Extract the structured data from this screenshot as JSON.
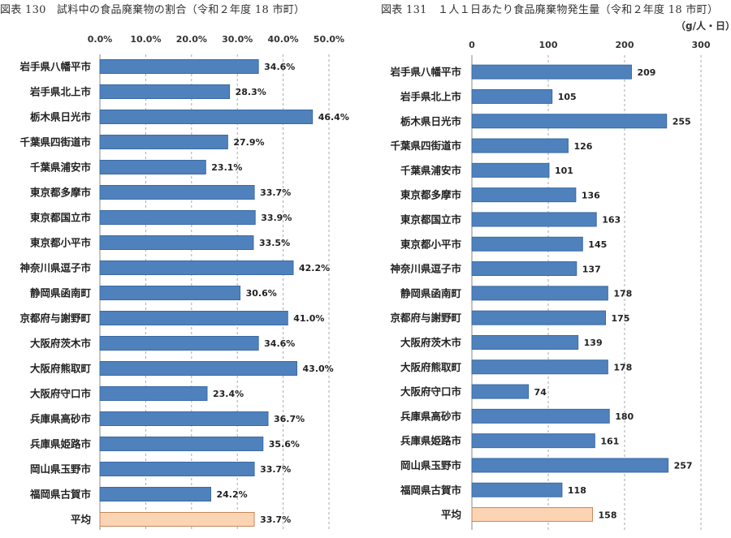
{
  "captions": {
    "left": "図表 130　試料中の食品廃棄物の割合（令和２年度 18 市町）",
    "right": "図表 131　１人１日あたり食品廃棄物発生量（令和２年度 18 市町）",
    "right_unit": "（g/人・日）"
  },
  "colors": {
    "bar": "#4F81BD",
    "bar_edge": "#3a6aa5",
    "avg_bar": "#FBD4B4",
    "avg_edge": "#c8875a",
    "grid": "#aaaaaa"
  },
  "chart_data": [
    {
      "type": "bar",
      "orientation": "horizontal",
      "categories": [
        "岩手県八幡平市",
        "岩手県北上市",
        "栃木県日光市",
        "千葉県四街道市",
        "千葉県浦安市",
        "東京都多摩市",
        "東京都国立市",
        "東京都小平市",
        "神奈川県逗子市",
        "静岡県函南町",
        "京都府与謝野町",
        "大阪府茨木市",
        "大阪府熊取町",
        "大阪府守口市",
        "兵庫県高砂市",
        "兵庫県姫路市",
        "岡山県玉野市",
        "福岡県古賀市",
        "平均"
      ],
      "values": [
        34.6,
        28.3,
        46.4,
        27.9,
        23.1,
        33.7,
        33.9,
        33.5,
        42.2,
        30.6,
        41.0,
        34.6,
        43.0,
        23.4,
        36.7,
        35.6,
        33.7,
        24.2,
        33.7
      ],
      "value_labels": [
        "34.6%",
        "28.3%",
        "46.4%",
        "27.9%",
        "23.1%",
        "33.7%",
        "33.9%",
        "33.5%",
        "42.2%",
        "30.6%",
        "41.0%",
        "34.6%",
        "43.0%",
        "23.4%",
        "36.7%",
        "35.6%",
        "33.7%",
        "24.2%",
        "33.7%"
      ],
      "ticks": [
        0,
        10,
        20,
        30,
        40,
        50
      ],
      "tick_labels": [
        "0.0%",
        "10.0%",
        "20.0%",
        "30.0%",
        "40.0%",
        "50.0%"
      ],
      "xlim": [
        0,
        50
      ],
      "grid": true,
      "highlight_last": true
    },
    {
      "type": "bar",
      "orientation": "horizontal",
      "categories": [
        "岩手県八幡平市",
        "岩手県北上市",
        "栃木県日光市",
        "千葉県四街道市",
        "千葉県浦安市",
        "東京都多摩市",
        "東京都国立市",
        "東京都小平市",
        "神奈川県逗子市",
        "静岡県函南町",
        "京都府与謝野町",
        "大阪府茨木市",
        "大阪府熊取町",
        "大阪府守口市",
        "兵庫県高砂市",
        "兵庫県姫路市",
        "岡山県玉野市",
        "福岡県古賀市",
        "平均"
      ],
      "values": [
        209,
        105,
        255,
        126,
        101,
        136,
        163,
        145,
        137,
        178,
        175,
        139,
        178,
        74,
        180,
        161,
        257,
        118,
        158
      ],
      "value_labels": [
        "209",
        "105",
        "255",
        "126",
        "101",
        "136",
        "163",
        "145",
        "137",
        "178",
        "175",
        "139",
        "178",
        "74",
        "180",
        "161",
        "257",
        "118",
        "158"
      ],
      "ticks": [
        0,
        100,
        200,
        300
      ],
      "tick_labels": [
        "0",
        "100",
        "200",
        "300"
      ],
      "xlim": [
        0,
        300
      ],
      "grid": true,
      "highlight_last": true
    }
  ]
}
